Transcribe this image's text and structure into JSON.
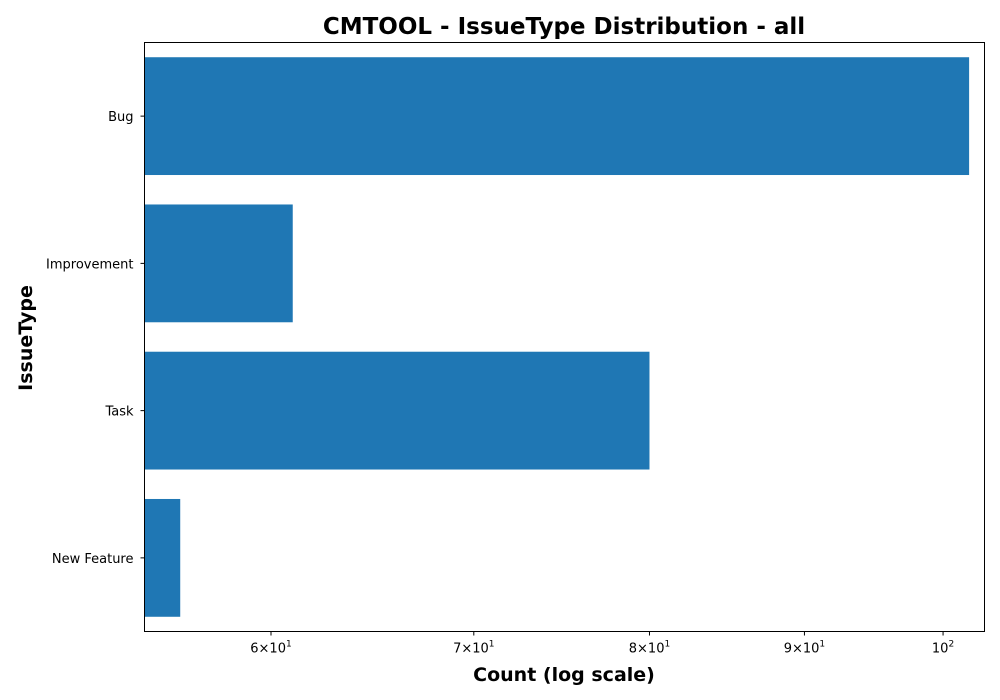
{
  "chart_data": {
    "type": "bar",
    "orientation": "horizontal",
    "title": "CMTOOL - IssueType Distribution - all",
    "xlabel": "Count (log scale)",
    "ylabel": "IssueType",
    "x_scale": "log",
    "xlim": [
      54.5,
      103.2
    ],
    "categories": [
      "Bug",
      "Improvement",
      "Task",
      "New Feature"
    ],
    "values": [
      102,
      61,
      80,
      56
    ],
    "x_ticks": [
      {
        "value": 60,
        "mantissa": "6",
        "base": "10",
        "exp": "1"
      },
      {
        "value": 70,
        "mantissa": "7",
        "base": "10",
        "exp": "1"
      },
      {
        "value": 80,
        "mantissa": "8",
        "base": "10",
        "exp": "1"
      },
      {
        "value": 90,
        "mantissa": "9",
        "base": "10",
        "exp": "1"
      },
      {
        "value": 100,
        "mantissa": "",
        "base": "10",
        "exp": "2"
      }
    ],
    "bar_color": "#1f77b4",
    "grid": false,
    "legend": "none"
  }
}
